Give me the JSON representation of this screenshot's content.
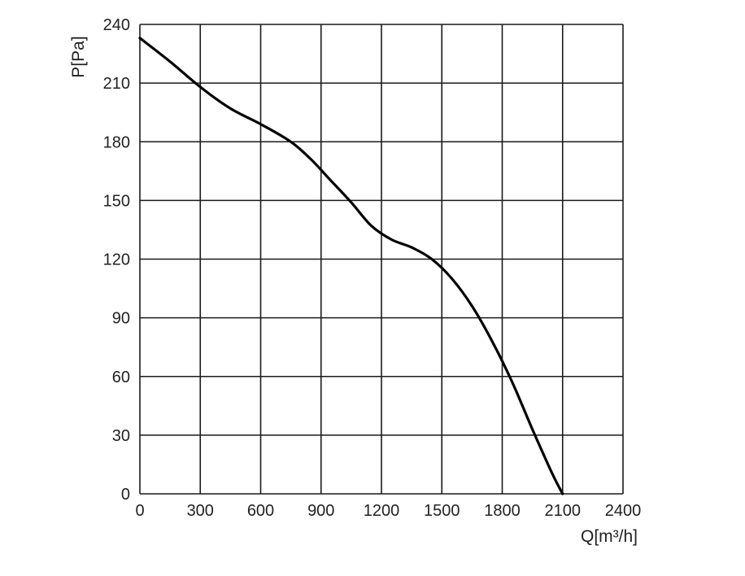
{
  "chart_data": {
    "type": "line",
    "xlabel": "Q[m³/h]",
    "ylabel": "P[Pa]",
    "xlim": [
      0,
      2400
    ],
    "ylim": [
      0,
      240
    ],
    "grid": true,
    "x_ticks": [
      "0",
      "300",
      "600",
      "900",
      "1200",
      "1500",
      "1800",
      "2100",
      "2400"
    ],
    "y_ticks": [
      "0",
      "30",
      "60",
      "90",
      "120",
      "150",
      "180",
      "210",
      "240"
    ],
    "series": [
      {
        "x": [
          0,
          150,
          300,
          450,
          600,
          750,
          850,
          950,
          1050,
          1150,
          1250,
          1350,
          1450,
          1550,
          1650,
          1750,
          1850,
          1950,
          2050,
          2100
        ],
        "y": [
          233,
          221,
          208,
          197,
          189,
          180,
          171,
          160,
          149,
          137,
          130,
          126,
          120,
          110,
          96,
          78,
          57,
          33,
          10,
          0
        ]
      }
    ],
    "colors": {
      "line": "#000000",
      "grid": "#1a1a1a",
      "text": "#222222"
    }
  }
}
